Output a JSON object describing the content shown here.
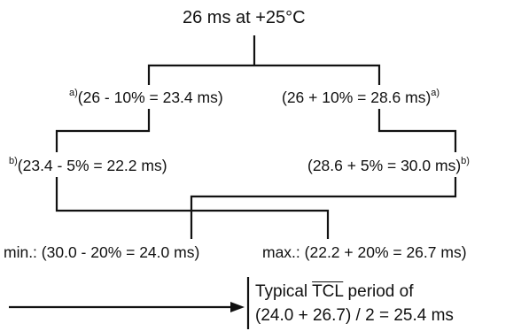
{
  "title": "26 ms at +25°C",
  "level1": {
    "left": {
      "footnote": "a)",
      "expr": "(26 - 10% = 23.4 ms)"
    },
    "right": {
      "expr": "(26 + 10% = 28.6 ms)",
      "footnote": "a)"
    }
  },
  "level2": {
    "left": {
      "footnote": "b)",
      "expr": "(23.4 - 5% = 22.2 ms)"
    },
    "right": {
      "expr": "(28.6 + 5% = 30.0 ms)",
      "footnote": "b)"
    }
  },
  "level3": {
    "min": "min.: (30.0 - 20% = 24.0 ms)",
    "max": "max.: (22.2 + 20% = 26.7 ms)"
  },
  "result": {
    "prefix": "Typical ",
    "signal": "TCL",
    "suffix": " period of",
    "formula": "(24.0 + 26.7) / 2 = 25.4 ms"
  }
}
